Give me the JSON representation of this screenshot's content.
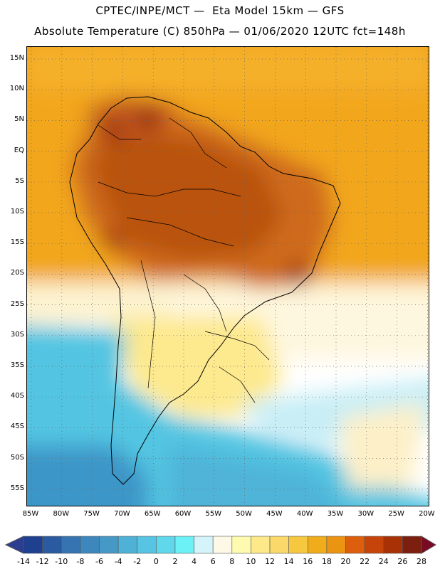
{
  "title_line1": "CPTEC/INPE/MCT —  Eta Model 15km — GFS",
  "title_line2": "Absolute Temperature (C) 850hPa — 01/06/2020 12UTC fct=148h",
  "lat_labels": [
    "15N",
    "10N",
    "5N",
    "EQ",
    "5S",
    "10S",
    "15S",
    "20S",
    "25S",
    "30S",
    "35S",
    "40S",
    "45S",
    "50S",
    "55S"
  ],
  "lon_labels": [
    "85W",
    "80W",
    "75W",
    "70W",
    "65W",
    "60W",
    "55W",
    "50W",
    "45W",
    "40W",
    "35W",
    "30W",
    "25W",
    "20W"
  ],
  "colorbar": {
    "labels": [
      "-14",
      "-12",
      "-10",
      "-8",
      "-6",
      "-4",
      "-2",
      "0",
      "2",
      "4",
      "6",
      "8",
      "10",
      "12",
      "14",
      "16",
      "18",
      "20",
      "22",
      "24",
      "26",
      "28"
    ],
    "colors": [
      "#1f3f8f",
      "#2a5aa0",
      "#3574b0",
      "#3d87bd",
      "#4699c6",
      "#4fb1d6",
      "#56c4e2",
      "#60d8ec",
      "#6cf2f6",
      "#d4f4fa",
      "#fef9e6",
      "#fefab0",
      "#fde98a",
      "#fad96a",
      "#f5c840",
      "#f0ac1a",
      "#eb9412",
      "#dd5e0c",
      "#c6440a",
      "#a83106",
      "#7c1f0e"
    ],
    "min_color": "#2d3d8f",
    "max_color": "#7a0a24"
  }
}
